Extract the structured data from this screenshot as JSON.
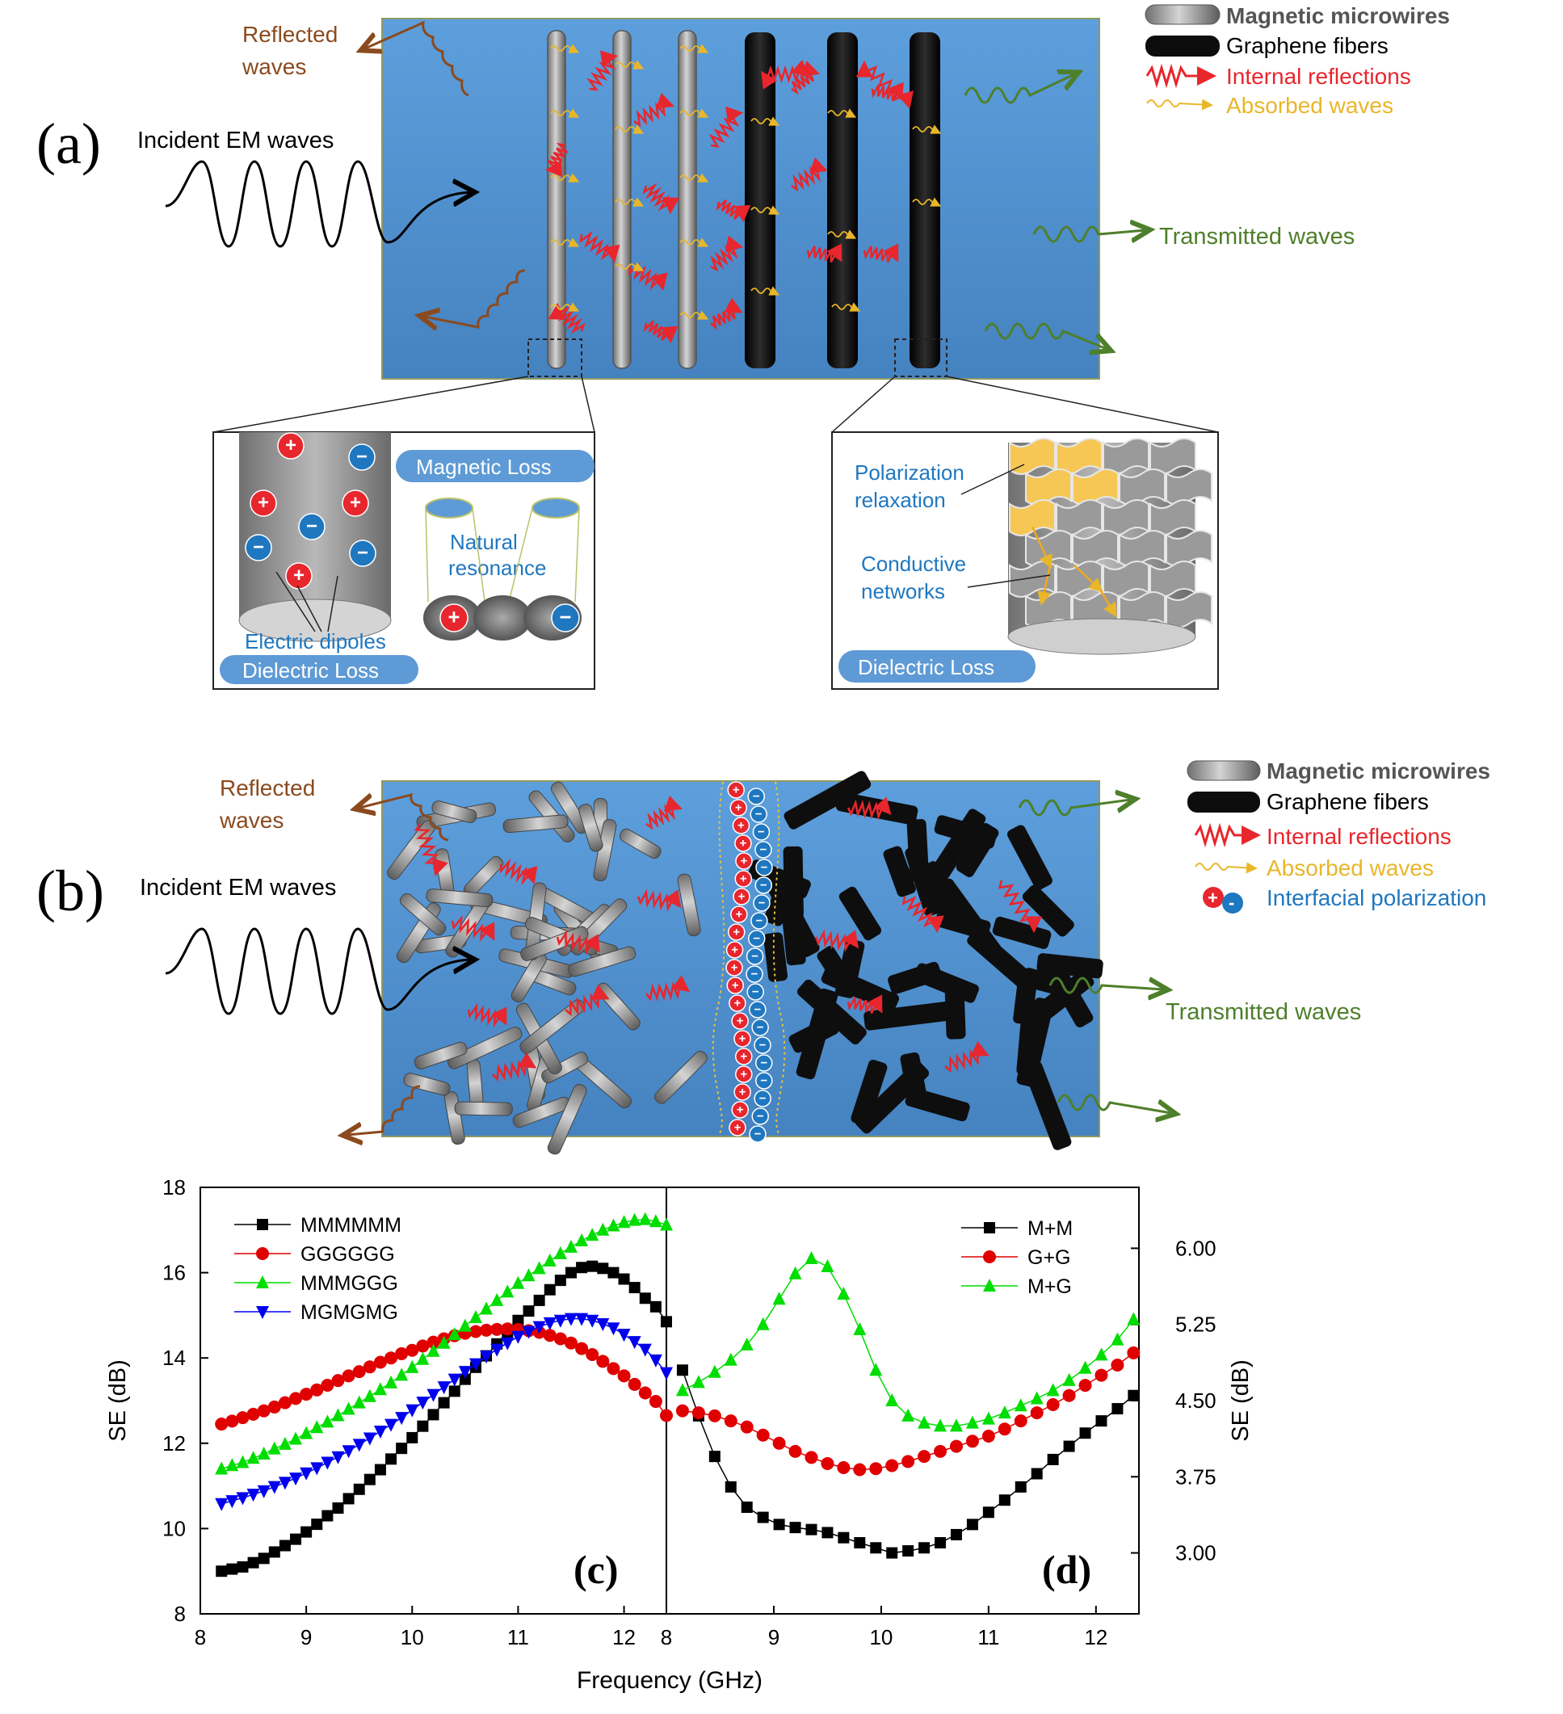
{
  "panel_a": {
    "label": "(a)",
    "incident": "Incident EM waves",
    "reflected": [
      "Reflected",
      "waves"
    ],
    "transmitted": "Transmitted waves",
    "legend": [
      "Magnetic microwires",
      "Graphene fibers",
      "Internal reflections",
      "Absorbed waves"
    ],
    "left_inset": {
      "magnetic_loss": "Magnetic Loss",
      "natural_resonance": [
        "Natural",
        "resonance"
      ],
      "electric_dipoles": "Electric dipoles",
      "dielectric_loss": "Dielectric Loss"
    },
    "right_inset": {
      "polarization": [
        "Polarization",
        "relaxation"
      ],
      "conductive": [
        "Conductive",
        "networks"
      ],
      "dielectric_loss": "Dielectric Loss"
    }
  },
  "panel_b": {
    "label": "(b)",
    "incident": "Incident EM waves",
    "reflected": [
      "Reflected",
      "waves"
    ],
    "transmitted": "Transmitted waves",
    "legend": [
      "Magnetic microwires",
      "Graphene fibers",
      "Internal reflections",
      "Absorbed waves",
      "Interfacial polarization"
    ]
  },
  "colors": {
    "blue_bg": "#4f93d3",
    "wire_gray": "#8a8a8a",
    "fiber_black": "#101010",
    "reflected": "#8b4a1e",
    "transmitted": "#4e7f2a",
    "internal": "#e8262d",
    "absorbed": "#e9b62a",
    "polarization": "#1f77c0"
  },
  "chart_data": [
    {
      "type": "line",
      "panel_label": "(c)",
      "xlabel": "Frequency (GHz)",
      "ylabel": "SE (dB)",
      "xlim": [
        8,
        12.4
      ],
      "ylim": [
        8,
        18
      ],
      "xticks": [
        "8",
        "9",
        "10",
        "11",
        "12"
      ],
      "yticks": [
        "8",
        "10",
        "12",
        "14",
        "16",
        "18"
      ],
      "legend_position": "top-left",
      "x": [
        8.2,
        8.3,
        8.4,
        8.5,
        8.6,
        8.7,
        8.8,
        8.9,
        9.0,
        9.1,
        9.2,
        9.3,
        9.4,
        9.5,
        9.6,
        9.7,
        9.8,
        9.9,
        10.0,
        10.1,
        10.2,
        10.3,
        10.4,
        10.5,
        10.6,
        10.7,
        10.8,
        10.9,
        11.0,
        11.1,
        11.2,
        11.3,
        11.4,
        11.5,
        11.6,
        11.7,
        11.8,
        11.9,
        12.0,
        12.1,
        12.2,
        12.3,
        12.4
      ],
      "series": [
        {
          "name": "MMMMMM",
          "color": "#000000",
          "marker": "square",
          "values": [
            9.0,
            9.05,
            9.1,
            9.2,
            9.3,
            9.45,
            9.6,
            9.75,
            9.92,
            10.1,
            10.3,
            10.48,
            10.7,
            10.92,
            11.15,
            11.38,
            11.63,
            11.88,
            12.13,
            12.4,
            12.67,
            12.95,
            13.22,
            13.5,
            13.78,
            14.05,
            14.33,
            14.6,
            14.88,
            15.1,
            15.35,
            15.6,
            15.82,
            16.0,
            16.12,
            16.15,
            16.1,
            16.0,
            15.85,
            15.65,
            15.4,
            15.2,
            14.85
          ]
        },
        {
          "name": "GGGGGG",
          "color": "#e00000",
          "marker": "circle",
          "values": [
            12.45,
            12.52,
            12.6,
            12.68,
            12.76,
            12.85,
            12.95,
            13.05,
            13.15,
            13.25,
            13.36,
            13.47,
            13.58,
            13.68,
            13.79,
            13.9,
            14.0,
            14.1,
            14.18,
            14.28,
            14.37,
            14.45,
            14.52,
            14.58,
            14.62,
            14.65,
            14.67,
            14.68,
            14.67,
            14.64,
            14.6,
            14.53,
            14.45,
            14.35,
            14.22,
            14.08,
            13.92,
            13.75,
            13.58,
            13.38,
            13.18,
            12.98,
            12.65
          ]
        },
        {
          "name": "MMMGGG",
          "color": "#00dd00",
          "marker": "triangle-up",
          "values": [
            11.4,
            11.48,
            11.55,
            11.65,
            11.75,
            11.87,
            11.98,
            12.1,
            12.23,
            12.37,
            12.5,
            12.65,
            12.8,
            12.95,
            13.1,
            13.26,
            13.42,
            13.6,
            13.78,
            13.97,
            14.16,
            14.35,
            14.55,
            14.75,
            14.95,
            15.15,
            15.35,
            15.55,
            15.75,
            15.93,
            16.1,
            16.28,
            16.45,
            16.6,
            16.75,
            16.88,
            17.0,
            17.1,
            17.18,
            17.23,
            17.25,
            17.2,
            17.12
          ]
        },
        {
          "name": "MGMGMG",
          "color": "#0000ee",
          "marker": "triangle-down",
          "values": [
            10.58,
            10.65,
            10.72,
            10.8,
            10.88,
            10.98,
            11.08,
            11.18,
            11.3,
            11.42,
            11.55,
            11.68,
            11.82,
            11.97,
            12.12,
            12.28,
            12.44,
            12.6,
            12.78,
            12.96,
            13.14,
            13.32,
            13.5,
            13.68,
            13.86,
            14.04,
            14.2,
            14.35,
            14.5,
            14.62,
            14.73,
            14.82,
            14.88,
            14.92,
            14.92,
            14.88,
            14.8,
            14.7,
            14.55,
            14.38,
            14.2,
            13.95,
            13.65
          ]
        }
      ]
    },
    {
      "type": "line",
      "panel_label": "(d)",
      "xlabel": "Frequency (GHz)",
      "ylabel": "SE (dB)",
      "xlim": [
        8,
        12.4
      ],
      "ylim": [
        2.4,
        6.6
      ],
      "xticks": [
        "8",
        "9",
        "10",
        "11",
        "12"
      ],
      "yticks": [
        "3.00",
        "3.75",
        "4.50",
        "5.25",
        "6.00"
      ],
      "y_axis_side": "right",
      "legend_position": "top-right",
      "x": [
        8.15,
        8.3,
        8.45,
        8.6,
        8.75,
        8.9,
        9.05,
        9.2,
        9.35,
        9.5,
        9.65,
        9.8,
        9.95,
        10.1,
        10.25,
        10.4,
        10.55,
        10.7,
        10.85,
        11.0,
        11.15,
        11.3,
        11.45,
        11.6,
        11.75,
        11.9,
        12.05,
        12.2,
        12.35
      ],
      "series": [
        {
          "name": "M+M",
          "color": "#000000",
          "marker": "square",
          "values": [
            4.8,
            4.35,
            3.95,
            3.65,
            3.45,
            3.35,
            3.28,
            3.25,
            3.23,
            3.2,
            3.15,
            3.1,
            3.05,
            3.0,
            3.02,
            3.05,
            3.1,
            3.18,
            3.28,
            3.4,
            3.52,
            3.65,
            3.78,
            3.92,
            4.05,
            4.18,
            4.3,
            4.42,
            4.55
          ]
        },
        {
          "name": "G+G",
          "color": "#e00000",
          "marker": "circle",
          "values": [
            4.4,
            4.38,
            4.35,
            4.3,
            4.24,
            4.16,
            4.08,
            4.0,
            3.94,
            3.88,
            3.84,
            3.82,
            3.83,
            3.86,
            3.9,
            3.95,
            4.0,
            4.05,
            4.1,
            4.15,
            4.22,
            4.3,
            4.38,
            4.46,
            4.55,
            4.65,
            4.75,
            4.85,
            4.97
          ]
        },
        {
          "name": "M+G",
          "color": "#00dd00",
          "marker": "triangle-up",
          "values": [
            4.6,
            4.68,
            4.78,
            4.9,
            5.05,
            5.25,
            5.5,
            5.75,
            5.9,
            5.82,
            5.55,
            5.2,
            4.8,
            4.5,
            4.35,
            4.28,
            4.25,
            4.25,
            4.28,
            4.32,
            4.38,
            4.45,
            4.52,
            4.6,
            4.7,
            4.82,
            4.95,
            5.1,
            5.3
          ]
        }
      ]
    }
  ]
}
